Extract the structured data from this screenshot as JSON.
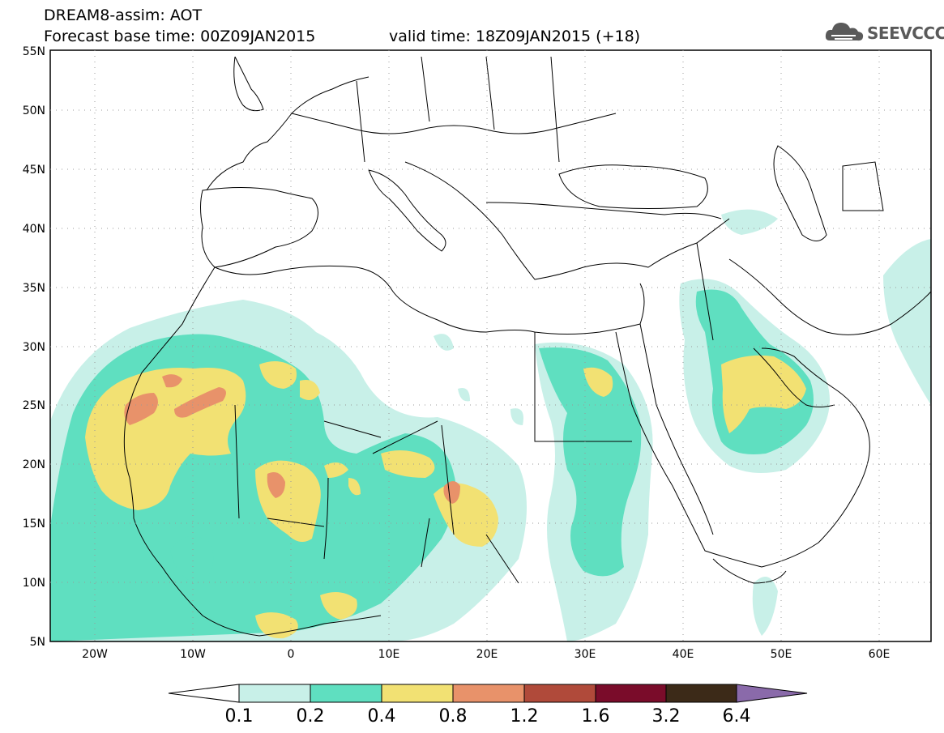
{
  "header": {
    "title": "DREAM8-assim: AOT",
    "base_time": "Forecast base time: 00Z09JAN2015",
    "valid_time": "valid time: 18Z09JAN2015 (+18)",
    "logo_text": "SEEVCCC"
  },
  "map": {
    "lat_labels": [
      "55N",
      "50N",
      "45N",
      "40N",
      "35N",
      "30N",
      "25N",
      "20N",
      "15N",
      "10N",
      "5N"
    ],
    "lon_labels": [
      "20W",
      "10W",
      "0",
      "10E",
      "20E",
      "30E",
      "40E",
      "50E",
      "60E"
    ]
  },
  "colorbar": {
    "labels": [
      "0.1",
      "0.2",
      "0.4",
      "0.8",
      "1.2",
      "1.6",
      "3.2",
      "6.4"
    ],
    "colors": [
      "#c8f0e8",
      "#5fdfc0",
      "#f2e173",
      "#e8926a",
      "#b04a3a",
      "#7a0c2a",
      "#3c2a18",
      "#8a6aaa"
    ]
  },
  "colors": {
    "aot_low": "#c8f0e8",
    "aot_mid": "#5fdfc0",
    "aot_high": "#f2e173",
    "aot_higher": "#e8926a",
    "aot_peak": "#b04a3a"
  }
}
